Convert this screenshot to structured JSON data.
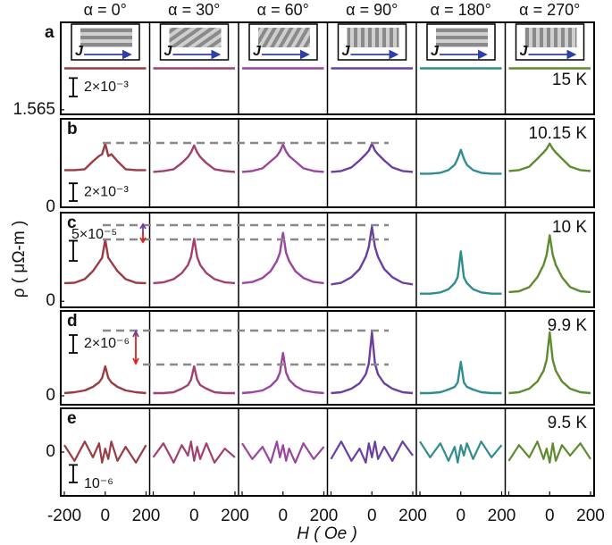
{
  "chart_data": {
    "type": "line",
    "xlabel": "H ( Oe )",
    "ylabel": "ρ ( μΩ-m )",
    "x": [
      -200,
      -150,
      -100,
      -60,
      -30,
      -15,
      0,
      15,
      30,
      60,
      100,
      150,
      200
    ],
    "xlim": [
      -200,
      200
    ],
    "xticks": [
      -200,
      0,
      200
    ],
    "columns": [
      {
        "title": "α = 0°",
        "color": "#9b3b44"
      },
      {
        "title": "α = 30°",
        "color": "#a2416f"
      },
      {
        "title": "α = 60°",
        "color": "#9a45a0"
      },
      {
        "title": "α = 90°",
        "color": "#6b3fa2"
      },
      {
        "title": "α = 180°",
        "color": "#2f8d8f"
      },
      {
        "title": "α = 270°",
        "color": "#5e8b30"
      }
    ],
    "rows": [
      {
        "letter": "a",
        "temperature": "15 K",
        "ylim": [
          1.5645,
          1.5745
        ],
        "yticks": [
          1.565
        ],
        "scale_bar": {
          "value": 0.002,
          "label": "2×10⁻³"
        },
        "series": [
          {
            "values": [
              1.5695,
              1.5695,
              1.5695,
              1.5695,
              1.5695,
              1.5695,
              1.5695,
              1.5695,
              1.5695,
              1.5695,
              1.5695,
              1.5695,
              1.5695
            ]
          },
          {
            "values": [
              1.5695,
              1.5695,
              1.5695,
              1.5695,
              1.5695,
              1.5695,
              1.5695,
              1.5695,
              1.5695,
              1.5695,
              1.5695,
              1.5695,
              1.5695
            ]
          },
          {
            "values": [
              1.5695,
              1.5695,
              1.5695,
              1.5695,
              1.5695,
              1.5695,
              1.5695,
              1.5695,
              1.5695,
              1.5695,
              1.5695,
              1.5695,
              1.5695
            ]
          },
          {
            "values": [
              1.5695,
              1.5695,
              1.5695,
              1.5695,
              1.5695,
              1.5695,
              1.5695,
              1.5695,
              1.5695,
              1.5695,
              1.5695,
              1.5695,
              1.5695
            ]
          },
          {
            "values": [
              1.5695,
              1.5695,
              1.5695,
              1.5695,
              1.5695,
              1.5695,
              1.5695,
              1.5695,
              1.5695,
              1.5695,
              1.5695,
              1.5695,
              1.5695
            ]
          },
          {
            "values": [
              1.5695,
              1.5695,
              1.5695,
              1.5695,
              1.5695,
              1.5695,
              1.5695,
              1.5695,
              1.5695,
              1.5695,
              1.5695,
              1.5695,
              1.5695
            ]
          }
        ]
      },
      {
        "letter": "b",
        "temperature": "10.15 K",
        "ylim": [
          0,
          0.01
        ],
        "yticks": [
          0
        ],
        "scale_bar": {
          "value": 0.002,
          "label": "2×10⁻³"
        },
        "series": [
          {
            "values": [
              0.0042,
              0.0042,
              0.0043,
              0.0052,
              0.0058,
              0.006,
              0.0072,
              0.0058,
              0.006,
              0.0052,
              0.0043,
              0.0042,
              0.0042
            ]
          },
          {
            "values": [
              0.004,
              0.0041,
              0.0043,
              0.005,
              0.0057,
              0.0062,
              0.007,
              0.0062,
              0.0057,
              0.005,
              0.0043,
              0.0041,
              0.004
            ]
          },
          {
            "values": [
              0.004,
              0.0041,
              0.0044,
              0.0052,
              0.0058,
              0.0063,
              0.0071,
              0.0063,
              0.0058,
              0.0052,
              0.0044,
              0.0041,
              0.004
            ]
          },
          {
            "values": [
              0.004,
              0.0041,
              0.0045,
              0.0053,
              0.006,
              0.0064,
              0.0072,
              0.0064,
              0.006,
              0.0053,
              0.0045,
              0.0041,
              0.004
            ]
          },
          {
            "values": [
              0.0038,
              0.0038,
              0.0039,
              0.0042,
              0.0048,
              0.0055,
              0.0065,
              0.0055,
              0.0048,
              0.0042,
              0.0039,
              0.0038,
              0.0038
            ]
          },
          {
            "values": [
              0.0041,
              0.0042,
              0.0046,
              0.0055,
              0.0062,
              0.0066,
              0.0072,
              0.0066,
              0.0062,
              0.0055,
              0.0046,
              0.0042,
              0.0041
            ]
          }
        ]
      },
      {
        "letter": "c",
        "temperature": "10 K",
        "ylim": [
          -1.5e-05,
          0.00022
        ],
        "yticks": [
          0
        ],
        "scale_bar": {
          "value": 5e-05,
          "label": "5×10⁻⁵"
        },
        "series": [
          {
            "values": [
              4.5e-05,
              4.6e-05,
              5.5e-05,
              7.5e-05,
              9.7e-05,
              0.000108,
              0.000153,
              0.000108,
              9.7e-05,
              7.5e-05,
              5.5e-05,
              4.6e-05,
              4.5e-05
            ]
          },
          {
            "values": [
              4.5e-05,
              4.7e-05,
              5.5e-05,
              7e-05,
              9e-05,
              0.00011,
              0.000155,
              0.00011,
              9e-05,
              7e-05,
              5.5e-05,
              4.7e-05,
              4.5e-05
            ]
          },
          {
            "values": [
              4.5e-05,
              4.8e-05,
              5.8e-05,
              7.5e-05,
              0.0001,
              0.00012,
              0.00017,
              0.00012,
              0.0001,
              7.5e-05,
              5.8e-05,
              4.8e-05,
              4.5e-05
            ]
          },
          {
            "values": [
              4.2e-05,
              4.6e-05,
              6e-05,
              8e-05,
              0.00011,
              0.000135,
              0.000185,
              0.000135,
              0.00011,
              8e-05,
              6e-05,
              4.6e-05,
              4.2e-05
            ]
          },
          {
            "values": [
              1.9e-05,
              1.9e-05,
              2.2e-05,
              3e-05,
              4.5e-05,
              6e-05,
              0.000124,
              6e-05,
              4.5e-05,
              3e-05,
              2.2e-05,
              1.9e-05,
              1.9e-05
            ]
          },
          {
            "values": [
              2.3e-05,
              2.5e-05,
              3.5e-05,
              6e-05,
              9e-05,
              0.000115,
              0.000164,
              0.000115,
              9e-05,
              6e-05,
              3.5e-05,
              2.5e-05,
              2.3e-05
            ]
          }
        ]
      },
      {
        "letter": "d",
        "temperature": "9.9 K",
        "ylim": [
          -1e-06,
          9.5e-06
        ],
        "yticks": [
          0
        ],
        "scale_bar": {
          "value": 2e-06,
          "label": "2×10⁻⁶"
        },
        "series": [
          {
            "values": [
              3e-07,
              4e-07,
              6e-07,
              1e-06,
              1.5e-06,
              2e-06,
              3.3e-06,
              2e-06,
              1.5e-06,
              1e-06,
              6e-07,
              4e-07,
              3e-07
            ]
          },
          {
            "values": [
              3e-07,
              3e-07,
              4e-07,
              8e-07,
              1.2e-06,
              1.8e-06,
              3.3e-06,
              1.8e-06,
              1.2e-06,
              8e-07,
              4e-07,
              3e-07,
              3e-07
            ]
          },
          {
            "values": [
              3e-07,
              4e-07,
              6e-07,
              1.1e-06,
              1.8e-06,
              2.6e-06,
              4.8e-06,
              2.6e-06,
              1.8e-06,
              1.1e-06,
              6e-07,
              4e-07,
              3e-07
            ]
          },
          {
            "values": [
              3e-07,
              4e-07,
              8e-07,
              1.4e-06,
              2.4e-06,
              3.6e-06,
              7.1e-06,
              3.6e-06,
              2.4e-06,
              1.4e-06,
              8e-07,
              4e-07,
              3e-07
            ]
          },
          {
            "values": [
              3e-07,
              3e-07,
              4e-07,
              7e-07,
              1e-06,
              1.5e-06,
              3.8e-06,
              1.5e-06,
              1e-06,
              7e-07,
              4e-07,
              3e-07,
              3e-07
            ]
          },
          {
            "values": [
              3e-07,
              4e-07,
              8e-07,
              1.6e-06,
              2.8e-06,
              4e-06,
              7.1e-06,
              4e-06,
              2.8e-06,
              1.6e-06,
              8e-07,
              4e-07,
              3e-07
            ]
          }
        ]
      },
      {
        "letter": "e",
        "temperature": "9.5 K",
        "ylim": [
          -2.5e-06,
          2.5e-06
        ],
        "yticks": [
          0
        ],
        "scale_bar": {
          "value": 1e-06,
          "label": "10⁻⁶"
        },
        "series": [
          {
            "values": [
              4e-07,
              -5e-07,
              6e-07,
              -3e-07,
              5e-07,
              -6e-07,
              2e-07,
              -4e-07,
              6e-07,
              -5e-07,
              3e-07,
              -6e-07,
              4e-07
            ]
          },
          {
            "values": [
              -3e-07,
              5e-07,
              -6e-07,
              4e-07,
              -2e-07,
              6e-07,
              -5e-07,
              3e-07,
              -4e-07,
              5e-07,
              -6e-07,
              2e-07,
              -3e-07
            ]
          },
          {
            "values": [
              5e-07,
              -4e-07,
              3e-07,
              -6e-07,
              6e-07,
              -3e-07,
              4e-07,
              -5e-07,
              2e-07,
              -6e-07,
              5e-07,
              -4e-07,
              3e-07
            ]
          },
          {
            "values": [
              -4e-07,
              6e-07,
              -5e-07,
              2e-07,
              -6e-07,
              5e-07,
              -3e-07,
              6e-07,
              -4e-07,
              3e-07,
              -5e-07,
              6e-07,
              -2e-07
            ]
          },
          {
            "values": [
              6e-07,
              -3e-07,
              5e-07,
              -5e-07,
              3e-07,
              -6e-07,
              4e-07,
              -2e-07,
              5e-07,
              -4e-07,
              6e-07,
              -3e-07,
              4e-07
            ]
          },
          {
            "values": [
              -5e-07,
              4e-07,
              -3e-07,
              6e-07,
              -4e-07,
              2e-07,
              -6e-07,
              5e-07,
              -5e-07,
              4e-07,
              -2e-07,
              5e-07,
              -4e-07
            ]
          }
        ]
      }
    ]
  }
}
